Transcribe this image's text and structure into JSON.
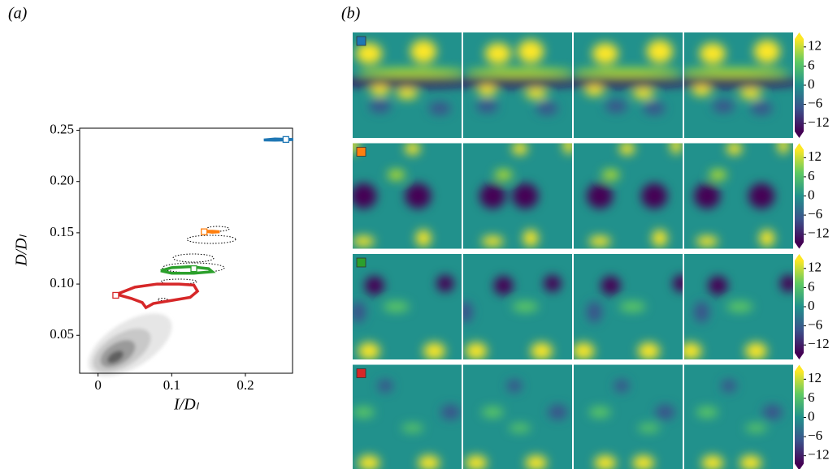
{
  "chart_data": [
    {
      "type": "line",
      "panel_label": "(a)",
      "x_label": "I/Dₗ",
      "y_label": "D/Dₗ",
      "xlim": [
        -0.025,
        0.264
      ],
      "ylim": [
        0.013,
        0.252
      ],
      "xticks": [
        0,
        0.1,
        0.2
      ],
      "yticks": [
        0.05,
        {
          "value": 0.1,
          "label": "0.10"
        },
        0.15,
        {
          "value": 0.2,
          "label": "0.20"
        },
        0.25
      ],
      "series": [
        {
          "color": "#1f77b4",
          "x": [
            0.225,
            0.24,
            0.255,
            0.265,
            0.255,
            0.24,
            0.225
          ],
          "y": [
            0.2405,
            0.2415,
            0.2412,
            0.241,
            0.2405,
            0.2403,
            0.2405
          ],
          "marker": [
            0.255,
            0.241
          ]
        },
        {
          "color": "#ff7f0e",
          "x": [
            0.145,
            0.155,
            0.165,
            0.155,
            0.145
          ],
          "y": [
            0.1515,
            0.1515,
            0.151,
            0.1505,
            0.1515
          ],
          "marker": [
            0.144,
            0.151
          ]
        },
        {
          "color": "#2ca02c",
          "x": [
            0.085,
            0.1,
            0.125,
            0.15,
            0.155,
            0.13,
            0.1,
            0.085
          ],
          "y": [
            0.113,
            0.116,
            0.117,
            0.115,
            0.112,
            0.1105,
            0.1105,
            0.113
          ],
          "marker": [
            0.13,
            0.115
          ]
        },
        {
          "color": "#d62728",
          "x": [
            0.025,
            0.05,
            0.08,
            0.11,
            0.13,
            0.135,
            0.125,
            0.1,
            0.075,
            0.065,
            0.06,
            0.045,
            0.025
          ],
          "y": [
            0.09,
            0.097,
            0.1,
            0.1,
            0.099,
            0.093,
            0.087,
            0.084,
            0.081,
            0.077,
            0.082,
            0.086,
            0.09
          ],
          "marker": [
            0.024,
            0.089
          ]
        }
      ]
    },
    {
      "type": "heatmap",
      "panel_label": "(b)",
      "rows": [
        {
          "color": "#1f77b4"
        },
        {
          "color": "#ff7f0e"
        },
        {
          "color": "#2ca02c"
        },
        {
          "color": "#d62728"
        }
      ],
      "clim": [
        -14.5,
        14.5
      ],
      "colorbar_ticks": [
        12,
        6,
        0,
        {
          "value": -6,
          "label": "−6"
        },
        {
          "value": -12,
          "label": "−12"
        }
      ]
    }
  ]
}
